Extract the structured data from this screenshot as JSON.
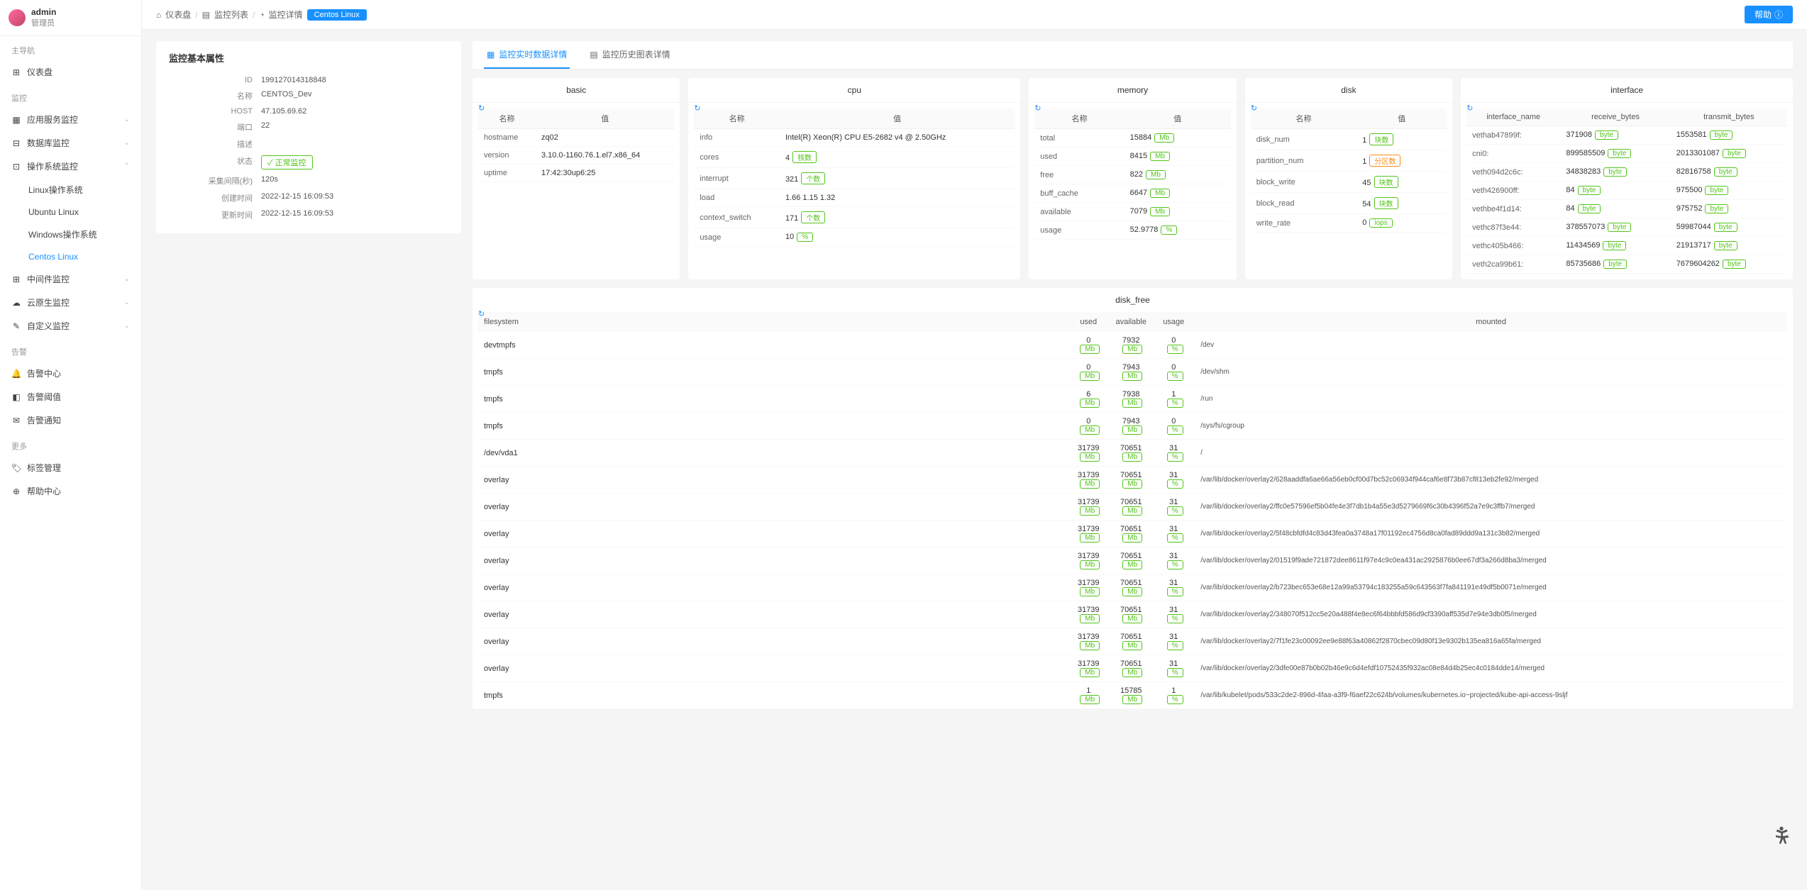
{
  "user": {
    "name": "admin",
    "role": "管理员"
  },
  "nav": {
    "section_main": "主导航",
    "dashboard": "仪表盘",
    "section_monitor": "监控",
    "app_monitor": "应用服务监控",
    "db_monitor": "数据库监控",
    "os_monitor": "操作系统监控",
    "os_linux": "Linux操作系统",
    "os_ubuntu": "Ubuntu Linux",
    "os_windows": "Windows操作系统",
    "os_centos": "Centos Linux",
    "mw_monitor": "中间件监控",
    "cloud_monitor": "云原生监控",
    "custom_monitor": "自定义监控",
    "section_alert": "告警",
    "alert_center": "告警中心",
    "alert_threshold": "告警阈值",
    "alert_notify": "告警通知",
    "section_more": "更多",
    "tag_mgmt": "标签管理",
    "help_center": "帮助中心"
  },
  "breadcrumb": {
    "dashboard": "仪表盘",
    "list": "监控列表",
    "detail": "监控详情",
    "current": "Centos Linux"
  },
  "help_btn": "帮助",
  "attrs": {
    "title": "监控基本属性",
    "id_label": "ID",
    "id": "199127014318848",
    "name_label": "名称",
    "name": "CENTOS_Dev",
    "host_label": "HOST",
    "host": "47.105.69.62",
    "port_label": "端口",
    "port": "22",
    "desc_label": "描述",
    "desc": "",
    "status_label": "状态",
    "status": "正常监控",
    "interval_label": "采集间隔(秒)",
    "interval": "120s",
    "created_label": "创建时间",
    "created": "2022-12-15 16:09:53",
    "updated_label": "更新时间",
    "updated": "2022-12-15 16:09:53"
  },
  "tabs": {
    "realtime": "监控实时数据详情",
    "history": "监控历史图表详情"
  },
  "hdr": {
    "name": "名称",
    "value": "值"
  },
  "basic": {
    "title": "basic",
    "rows": [
      {
        "k": "hostname",
        "v": "zq02"
      },
      {
        "k": "version",
        "v": "3.10.0-1160.76.1.el7.x86_64"
      },
      {
        "k": "uptime",
        "v": "17:42:30up6:25"
      }
    ]
  },
  "cpu": {
    "title": "cpu",
    "rows": [
      {
        "k": "info",
        "v": "Intel(R) Xeon(R) CPU E5-2682 v4 @ 2.50GHz"
      },
      {
        "k": "cores",
        "v": "4",
        "unit": "核数"
      },
      {
        "k": "interrupt",
        "v": "321",
        "unit": "个数"
      },
      {
        "k": "load",
        "v": "1.66 1.15 1.32"
      },
      {
        "k": "context_switch",
        "v": "171",
        "unit": "个数"
      },
      {
        "k": "usage",
        "v": "10",
        "unit": "%"
      }
    ]
  },
  "memory": {
    "title": "memory",
    "rows": [
      {
        "k": "total",
        "v": "15884",
        "unit": "Mb"
      },
      {
        "k": "used",
        "v": "8415",
        "unit": "Mb"
      },
      {
        "k": "free",
        "v": "822",
        "unit": "Mb"
      },
      {
        "k": "buff_cache",
        "v": "6647",
        "unit": "Mb"
      },
      {
        "k": "available",
        "v": "7079",
        "unit": "Mb"
      },
      {
        "k": "usage",
        "v": "52.9778",
        "unit": "%"
      }
    ]
  },
  "disk": {
    "title": "disk",
    "rows": [
      {
        "k": "disk_num",
        "v": "1",
        "unit": "块数"
      },
      {
        "k": "partition_num",
        "v": "1",
        "unit": "分区数",
        "orange": true
      },
      {
        "k": "block_write",
        "v": "45",
        "unit": "块数"
      },
      {
        "k": "block_read",
        "v": "54",
        "unit": "块数"
      },
      {
        "k": "write_rate",
        "v": "0",
        "unit": "iops"
      }
    ]
  },
  "interface": {
    "title": "interface",
    "hdr": {
      "name": "interface_name",
      "rx": "receive_bytes",
      "tx": "transmit_bytes"
    },
    "rows": [
      {
        "n": "vethab47899f:",
        "rx": "371908",
        "tx": "1553581"
      },
      {
        "n": "cni0:",
        "rx": "899585509",
        "tx": "2013301087"
      },
      {
        "n": "veth094d2c6c:",
        "rx": "34838283",
        "tx": "82816758"
      },
      {
        "n": "veth426900ff:",
        "rx": "84",
        "tx": "975500"
      },
      {
        "n": "vethbe4f1d14:",
        "rx": "84",
        "tx": "975752"
      },
      {
        "n": "vethc87f3e44:",
        "rx": "378557073",
        "tx": "59987044"
      },
      {
        "n": "vethc405b466:",
        "rx": "11434569",
        "tx": "21913717"
      },
      {
        "n": "veth2ca99b61:",
        "rx": "85735686",
        "tx": "7679604262"
      }
    ],
    "unit": "byte"
  },
  "disk_free": {
    "title": "disk_free",
    "hdr": {
      "fs": "filesystem",
      "used": "used",
      "avail": "available",
      "usage": "usage",
      "mount": "mounted"
    },
    "unit_mb": "Mb",
    "unit_pct": "%",
    "rows": [
      {
        "fs": "devtmpfs",
        "used": "0",
        "avail": "7932",
        "usage": "0",
        "mount": "/dev"
      },
      {
        "fs": "tmpfs",
        "used": "0",
        "avail": "7943",
        "usage": "0",
        "mount": "/dev/shm"
      },
      {
        "fs": "tmpfs",
        "used": "6",
        "avail": "7938",
        "usage": "1",
        "mount": "/run"
      },
      {
        "fs": "tmpfs",
        "used": "0",
        "avail": "7943",
        "usage": "0",
        "mount": "/sys/fs/cgroup"
      },
      {
        "fs": "/dev/vda1",
        "used": "31739",
        "avail": "70651",
        "usage": "31",
        "mount": "/"
      },
      {
        "fs": "overlay",
        "used": "31739",
        "avail": "70651",
        "usage": "31",
        "mount": "/var/lib/docker/overlay2/628aaddfa6ae66a56eb0cf00d7bc52c06934f944caf6e8f73b87cf813eb2fe92/merged"
      },
      {
        "fs": "overlay",
        "used": "31739",
        "avail": "70651",
        "usage": "31",
        "mount": "/var/lib/docker/overlay2/ffc0e57596ef5b04fe4e3f7db1b4a55e3d5279669f6c30b4396f52a7e9c3ffb7/merged"
      },
      {
        "fs": "overlay",
        "used": "31739",
        "avail": "70651",
        "usage": "31",
        "mount": "/var/lib/docker/overlay2/5f48cbfdfd4c83d43fea0a3748a17f01192ec4756d8ca0fad89ddd9a131c3b82/merged"
      },
      {
        "fs": "overlay",
        "used": "31739",
        "avail": "70651",
        "usage": "31",
        "mount": "/var/lib/docker/overlay2/01519f9ade721872dee8611f97e4c9c0ea431ac2925876b0ee67df3a266d8ba3/merged"
      },
      {
        "fs": "overlay",
        "used": "31739",
        "avail": "70651",
        "usage": "31",
        "mount": "/var/lib/docker/overlay2/b723bec653e68e12a99a53794c183255a59c643563f7fa841191e49df5b0071e/merged"
      },
      {
        "fs": "overlay",
        "used": "31739",
        "avail": "70651",
        "usage": "31",
        "mount": "/var/lib/docker/overlay2/348070f512cc5e20a488f4e8ec6f64bbbfd586d9cf3390aff535d7e94e3db0f5/merged"
      },
      {
        "fs": "overlay",
        "used": "31739",
        "avail": "70651",
        "usage": "31",
        "mount": "/var/lib/docker/overlay2/7f1fe23c00092ee9e88f63a40862f2870cbec09d80f13e9302b135ea816a65fa/merged"
      },
      {
        "fs": "overlay",
        "used": "31739",
        "avail": "70651",
        "usage": "31",
        "mount": "/var/lib/docker/overlay2/3dfe00e87b0b02b46e9c6d4efdf10752435f932ac08e84d4b25ec4c0184dde14/merged"
      },
      {
        "fs": "tmpfs",
        "used": "1",
        "avail": "15785",
        "usage": "1",
        "mount": "/var/lib/kubelet/pods/533c2de2-896d-4faa-a3f9-f6aef22c624b/volumes/kubernetes.io~projected/kube-api-access-9sljf"
      }
    ]
  }
}
